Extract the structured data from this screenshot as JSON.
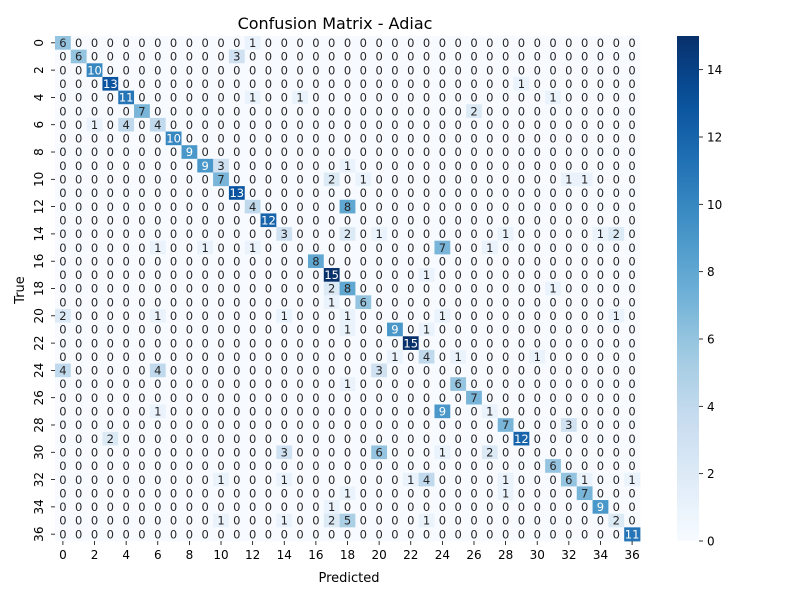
{
  "chart_data": {
    "type": "heatmap",
    "title": "Confusion Matrix - Adiac",
    "xlabel": "Predicted",
    "ylabel": "True",
    "size": 37,
    "tick_step": 2,
    "colormap": "Blues",
    "colorbar": {
      "min": 0,
      "max": 15,
      "ticks": [
        0,
        2,
        4,
        6,
        8,
        10,
        12,
        14
      ]
    },
    "nonzero_cells": [
      [
        0,
        0,
        6
      ],
      [
        0,
        12,
        1
      ],
      [
        1,
        1,
        6
      ],
      [
        1,
        11,
        3
      ],
      [
        2,
        2,
        10
      ],
      [
        3,
        3,
        13
      ],
      [
        3,
        29,
        1
      ],
      [
        4,
        4,
        11
      ],
      [
        4,
        12,
        1
      ],
      [
        4,
        15,
        1
      ],
      [
        4,
        31,
        1
      ],
      [
        5,
        5,
        7
      ],
      [
        5,
        26,
        2
      ],
      [
        6,
        2,
        1
      ],
      [
        6,
        4,
        4
      ],
      [
        6,
        6,
        4
      ],
      [
        7,
        7,
        10
      ],
      [
        8,
        8,
        9
      ],
      [
        9,
        9,
        9
      ],
      [
        9,
        10,
        3
      ],
      [
        9,
        18,
        1
      ],
      [
        10,
        10,
        7
      ],
      [
        10,
        17,
        2
      ],
      [
        10,
        19,
        1
      ],
      [
        10,
        32,
        1
      ],
      [
        10,
        33,
        1
      ],
      [
        11,
        11,
        13
      ],
      [
        12,
        12,
        4
      ],
      [
        12,
        18,
        8
      ],
      [
        13,
        13,
        12
      ],
      [
        14,
        14,
        3
      ],
      [
        14,
        18,
        2
      ],
      [
        14,
        20,
        1
      ],
      [
        14,
        28,
        1
      ],
      [
        14,
        34,
        1
      ],
      [
        14,
        35,
        2
      ],
      [
        15,
        6,
        1
      ],
      [
        15,
        9,
        1
      ],
      [
        15,
        12,
        1
      ],
      [
        15,
        24,
        7
      ],
      [
        15,
        27,
        1
      ],
      [
        16,
        16,
        8
      ],
      [
        17,
        17,
        15
      ],
      [
        17,
        23,
        1
      ],
      [
        18,
        17,
        2
      ],
      [
        18,
        18,
        8
      ],
      [
        18,
        31,
        1
      ],
      [
        19,
        17,
        1
      ],
      [
        19,
        19,
        6
      ],
      [
        20,
        0,
        2
      ],
      [
        20,
        6,
        1
      ],
      [
        20,
        14,
        1
      ],
      [
        20,
        18,
        1
      ],
      [
        20,
        24,
        1
      ],
      [
        20,
        35,
        1
      ],
      [
        21,
        18,
        1
      ],
      [
        21,
        21,
        9
      ],
      [
        21,
        23,
        1
      ],
      [
        22,
        22,
        15
      ],
      [
        23,
        21,
        1
      ],
      [
        23,
        23,
        4
      ],
      [
        23,
        25,
        1
      ],
      [
        23,
        30,
        1
      ],
      [
        24,
        0,
        4
      ],
      [
        24,
        6,
        4
      ],
      [
        24,
        20,
        3
      ],
      [
        25,
        18,
        1
      ],
      [
        25,
        25,
        6
      ],
      [
        26,
        26,
        7
      ],
      [
        27,
        6,
        1
      ],
      [
        27,
        24,
        9
      ],
      [
        27,
        27,
        1
      ],
      [
        28,
        28,
        7
      ],
      [
        28,
        32,
        3
      ],
      [
        29,
        3,
        2
      ],
      [
        29,
        29,
        12
      ],
      [
        30,
        14,
        3
      ],
      [
        30,
        20,
        6
      ],
      [
        30,
        24,
        1
      ],
      [
        30,
        27,
        2
      ],
      [
        31,
        31,
        6
      ],
      [
        32,
        10,
        1
      ],
      [
        32,
        14,
        1
      ],
      [
        32,
        22,
        1
      ],
      [
        32,
        23,
        4
      ],
      [
        32,
        28,
        1
      ],
      [
        32,
        32,
        6
      ],
      [
        32,
        33,
        1
      ],
      [
        32,
        36,
        1
      ],
      [
        33,
        18,
        1
      ],
      [
        33,
        28,
        1
      ],
      [
        33,
        33,
        7
      ],
      [
        34,
        17,
        1
      ],
      [
        34,
        34,
        9
      ],
      [
        35,
        10,
        1
      ],
      [
        35,
        14,
        1
      ],
      [
        35,
        17,
        2
      ],
      [
        35,
        18,
        5
      ],
      [
        35,
        23,
        1
      ],
      [
        35,
        35,
        2
      ],
      [
        36,
        36,
        11
      ]
    ]
  }
}
